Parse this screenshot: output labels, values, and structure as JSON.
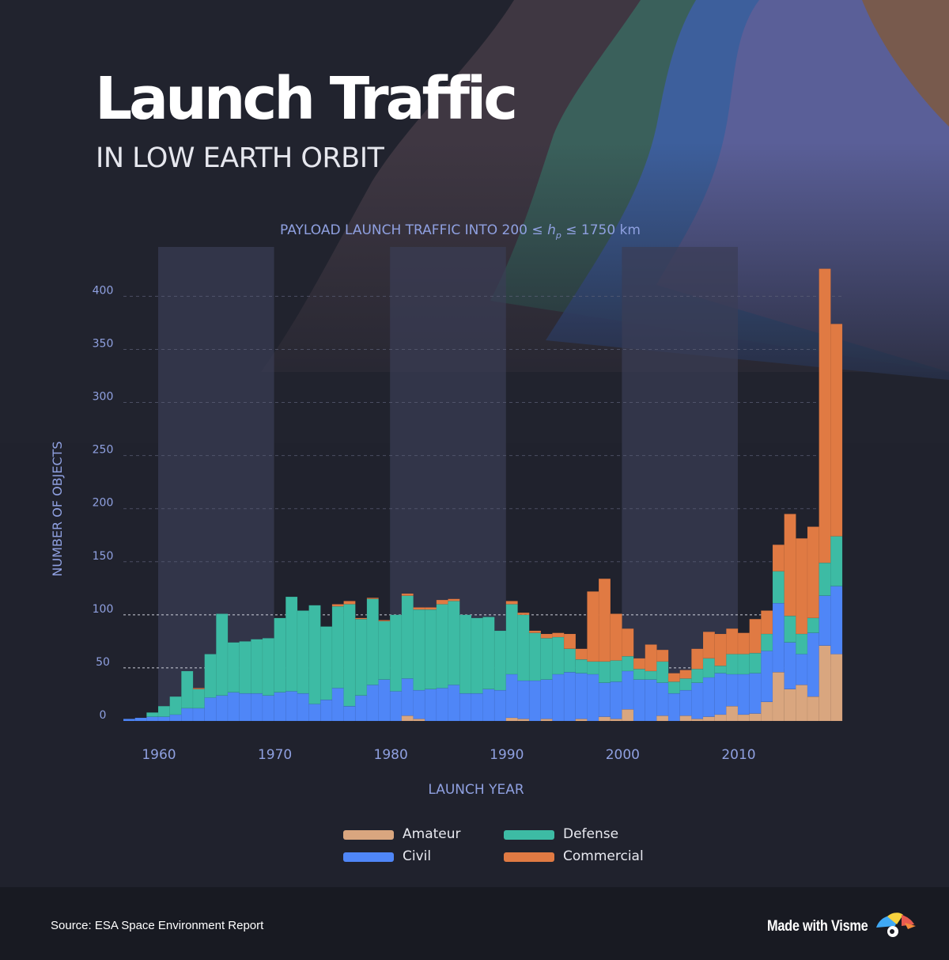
{
  "title": "Launch Traffic",
  "subtitle": "IN LOW EARTH ORBIT",
  "colors": {
    "background": "#21232e",
    "amateur": "#d9a67f",
    "civil": "#4f86f7",
    "defense": "#3dbba4",
    "commercial": "#e07a43",
    "decade_band": "#3a3d56",
    "axis_text": "#8fa0e0"
  },
  "legend": [
    {
      "label": "Amateur",
      "color": "#d9a67f"
    },
    {
      "label": "Defense",
      "color": "#3dbba4"
    },
    {
      "label": "Civil",
      "color": "#4f86f7"
    },
    {
      "label": "Commercial",
      "color": "#e07a43"
    }
  ],
  "source": "Source:  ESA Space Environment Report",
  "made_with": "Made with Visme",
  "logo_icon": "visme-logo-icon",
  "chart_data": {
    "type": "bar",
    "stacked": true,
    "title_prefix": "PAYLOAD LAUNCH TRAFFIC INTO 200 ≤ ",
    "title_var": "h",
    "title_sub": "p",
    "title_suffix": " ≤ 1750 km",
    "xlabel": "LAUNCH YEAR",
    "ylabel": "NUMBER OF OBJECTS",
    "ylim": [
      0,
      420
    ],
    "yticks": [
      0,
      50,
      100,
      150,
      200,
      250,
      300,
      350,
      400
    ],
    "xticks": [
      1960,
      1970,
      1980,
      1990,
      2000,
      2010
    ],
    "x_range": [
      1957,
      2019
    ],
    "highlight_decades": [
      [
        1960,
        1970
      ],
      [
        1980,
        1990
      ],
      [
        2000,
        2010
      ]
    ],
    "grid": "horizontal dashed",
    "legend_position": "bottom",
    "years": [
      1957,
      1958,
      1959,
      1960,
      1961,
      1962,
      1963,
      1964,
      1965,
      1966,
      1967,
      1968,
      1969,
      1970,
      1971,
      1972,
      1973,
      1974,
      1975,
      1976,
      1977,
      1978,
      1979,
      1980,
      1981,
      1982,
      1983,
      1984,
      1985,
      1986,
      1987,
      1988,
      1989,
      1990,
      1991,
      1992,
      1993,
      1994,
      1995,
      1996,
      1997,
      1998,
      1999,
      2000,
      2001,
      2002,
      2003,
      2004,
      2005,
      2006,
      2007,
      2008,
      2009,
      2010,
      2011,
      2012,
      2013,
      2014,
      2015,
      2016,
      2017,
      2018
    ],
    "series": [
      {
        "name": "Amateur",
        "values": [
          0,
          0,
          0,
          0,
          0,
          0,
          0,
          0,
          0,
          0,
          0,
          0,
          0,
          0,
          0,
          0,
          0,
          0,
          0,
          0,
          0,
          0,
          0,
          0,
          5,
          2,
          0,
          0,
          0,
          0,
          0,
          0,
          0,
          3,
          2,
          0,
          2,
          0,
          0,
          2,
          0,
          4,
          2,
          11,
          0,
          0,
          5,
          0,
          5,
          2,
          4,
          6,
          14,
          6,
          7,
          18,
          46,
          30,
          34,
          23,
          71,
          63
        ]
      },
      {
        "name": "Civil",
        "values": [
          2,
          3,
          4,
          4,
          6,
          12,
          12,
          22,
          24,
          27,
          26,
          26,
          24,
          27,
          28,
          26,
          16,
          20,
          31,
          14,
          24,
          34,
          39,
          28,
          35,
          27,
          30,
          31,
          34,
          26,
          26,
          30,
          29,
          41,
          36,
          38,
          37,
          44,
          46,
          43,
          44,
          32,
          35,
          36,
          39,
          39,
          31,
          26,
          24,
          34,
          37,
          39,
          30,
          38,
          38,
          48,
          65,
          44,
          29,
          60,
          47,
          64
        ]
      },
      {
        "name": "Defense",
        "values": [
          0,
          0,
          4,
          10,
          17,
          35,
          18,
          41,
          77,
          47,
          49,
          51,
          54,
          70,
          89,
          78,
          93,
          69,
          77,
          96,
          72,
          81,
          55,
          72,
          78,
          76,
          75,
          79,
          79,
          74,
          71,
          68,
          56,
          66,
          62,
          45,
          39,
          35,
          22,
          13,
          12,
          20,
          20,
          14,
          10,
          8,
          20,
          11,
          11,
          13,
          18,
          7,
          19,
          19,
          19,
          16,
          30,
          25,
          19,
          14,
          31,
          47
        ]
      },
      {
        "name": "Commercial",
        "values": [
          0,
          0,
          0,
          0,
          0,
          0,
          1,
          0,
          0,
          0,
          0,
          0,
          0,
          0,
          0,
          0,
          0,
          0,
          2,
          3,
          1,
          1,
          1,
          0,
          2,
          2,
          2,
          4,
          2,
          0,
          0,
          0,
          0,
          3,
          2,
          2,
          4,
          4,
          14,
          10,
          66,
          78,
          44,
          26,
          10,
          25,
          11,
          8,
          8,
          19,
          25,
          30,
          24,
          20,
          32,
          22,
          25,
          96,
          90,
          86,
          277,
          200
        ]
      }
    ]
  }
}
